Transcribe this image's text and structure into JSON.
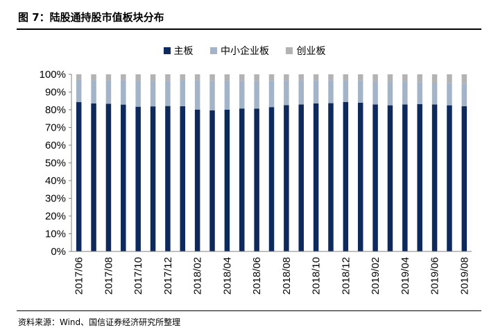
{
  "header": {
    "title": "图 7：陆股通持股市值板块分布"
  },
  "footer": {
    "source": "资料来源：Wind、国信证券经济研究所整理"
  },
  "colors": {
    "main": "#0e2a5c",
    "sme": "#a3b4c8",
    "chinext": "#b3b3b3"
  },
  "chart_data": {
    "type": "bar",
    "stacked": true,
    "title": "",
    "xlabel": "",
    "ylabel": "",
    "ylim": [
      0,
      100
    ],
    "y_ticks": [
      "0%",
      "10%",
      "20%",
      "30%",
      "40%",
      "50%",
      "60%",
      "70%",
      "80%",
      "90%",
      "100%"
    ],
    "grid": false,
    "legend_position": "top-center",
    "categories": [
      "2017/06",
      "2017/07",
      "2017/08",
      "2017/09",
      "2017/10",
      "2017/11",
      "2017/12",
      "2018/01",
      "2018/02",
      "2018/03",
      "2018/04",
      "2018/05",
      "2018/06",
      "2018/07",
      "2018/08",
      "2018/09",
      "2018/10",
      "2018/11",
      "2018/12",
      "2019/01",
      "2019/02",
      "2019/03",
      "2019/04",
      "2019/05",
      "2019/06",
      "2019/07",
      "2019/08"
    ],
    "x_tick_labels": [
      "2017/06",
      "",
      "2017/08",
      "",
      "2017/10",
      "",
      "2017/12",
      "",
      "2018/02",
      "",
      "2018/04",
      "",
      "2018/06",
      "",
      "2018/08",
      "",
      "2018/10",
      "",
      "2018/12",
      "",
      "2019/02",
      "",
      "2019/04",
      "",
      "2019/06",
      "",
      "2019/08"
    ],
    "series": [
      {
        "name": "主板",
        "color": "#0e2a5c",
        "values": [
          84.3,
          83.6,
          83.4,
          82.9,
          81.7,
          81.9,
          82.1,
          82.0,
          80.1,
          79.7,
          80.0,
          80.7,
          80.6,
          81.5,
          82.6,
          83.0,
          83.6,
          83.7,
          84.4,
          84.0,
          83.0,
          82.5,
          83.0,
          83.2,
          83.0,
          82.5,
          82.0
        ]
      },
      {
        "name": "中小企业板",
        "color": "#a3b4c8",
        "values": [
          12.7,
          13.1,
          13.3,
          13.6,
          14.6,
          14.4,
          14.3,
          14.5,
          16.4,
          16.7,
          16.3,
          15.7,
          15.6,
          14.9,
          13.9,
          13.5,
          13.0,
          12.9,
          12.3,
          12.6,
          13.0,
          13.2,
          12.7,
          12.4,
          12.3,
          12.5,
          12.8
        ]
      },
      {
        "name": "创业板",
        "color": "#b3b3b3",
        "values": [
          3.0,
          3.3,
          3.3,
          3.5,
          3.7,
          3.7,
          3.6,
          3.5,
          3.5,
          3.6,
          3.7,
          3.6,
          3.8,
          3.6,
          3.5,
          3.5,
          3.4,
          3.4,
          3.3,
          3.4,
          4.0,
          4.3,
          4.3,
          4.4,
          4.7,
          5.0,
          5.2
        ]
      }
    ]
  }
}
